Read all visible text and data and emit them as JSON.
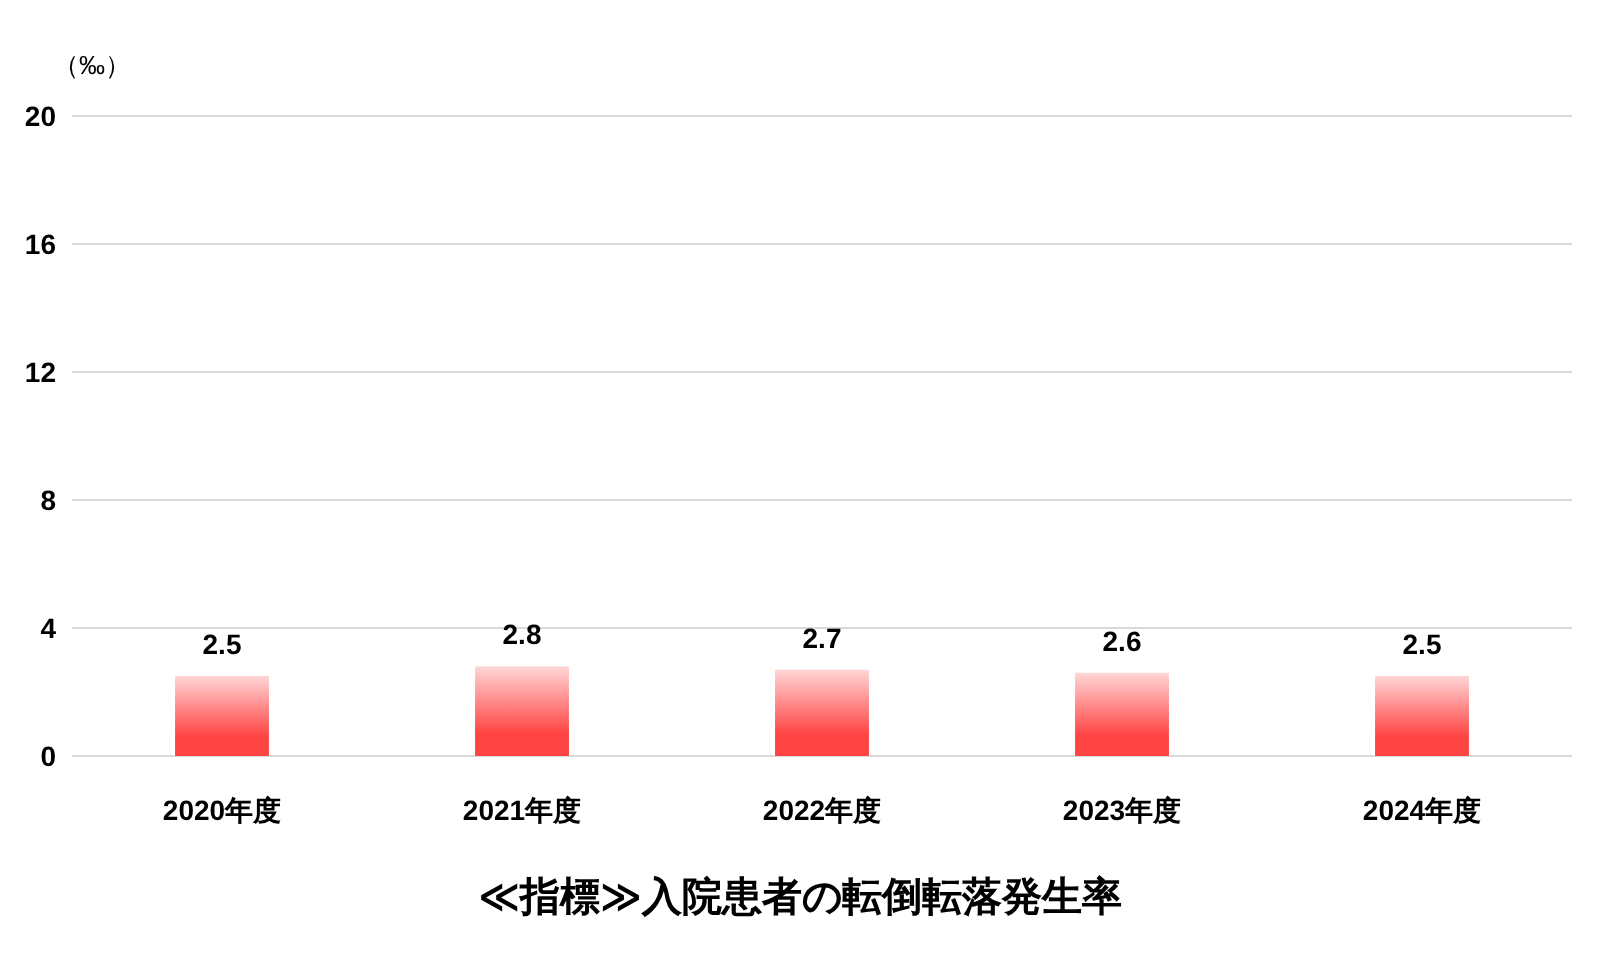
{
  "chart_data": {
    "type": "bar",
    "title": "≪指標≫入院患者の転倒転落発生率",
    "ylabel": "（‰）",
    "categories": [
      "2020年度",
      "2021年度",
      "2022年度",
      "2023年度",
      "2024年度"
    ],
    "values": [
      2.5,
      2.8,
      2.7,
      2.6,
      2.5
    ],
    "color": "#ff4444",
    "ylim": [
      0,
      20
    ],
    "yticks": [
      0,
      4,
      8,
      12,
      16,
      20
    ],
    "grid": "y",
    "data_labels": true
  }
}
